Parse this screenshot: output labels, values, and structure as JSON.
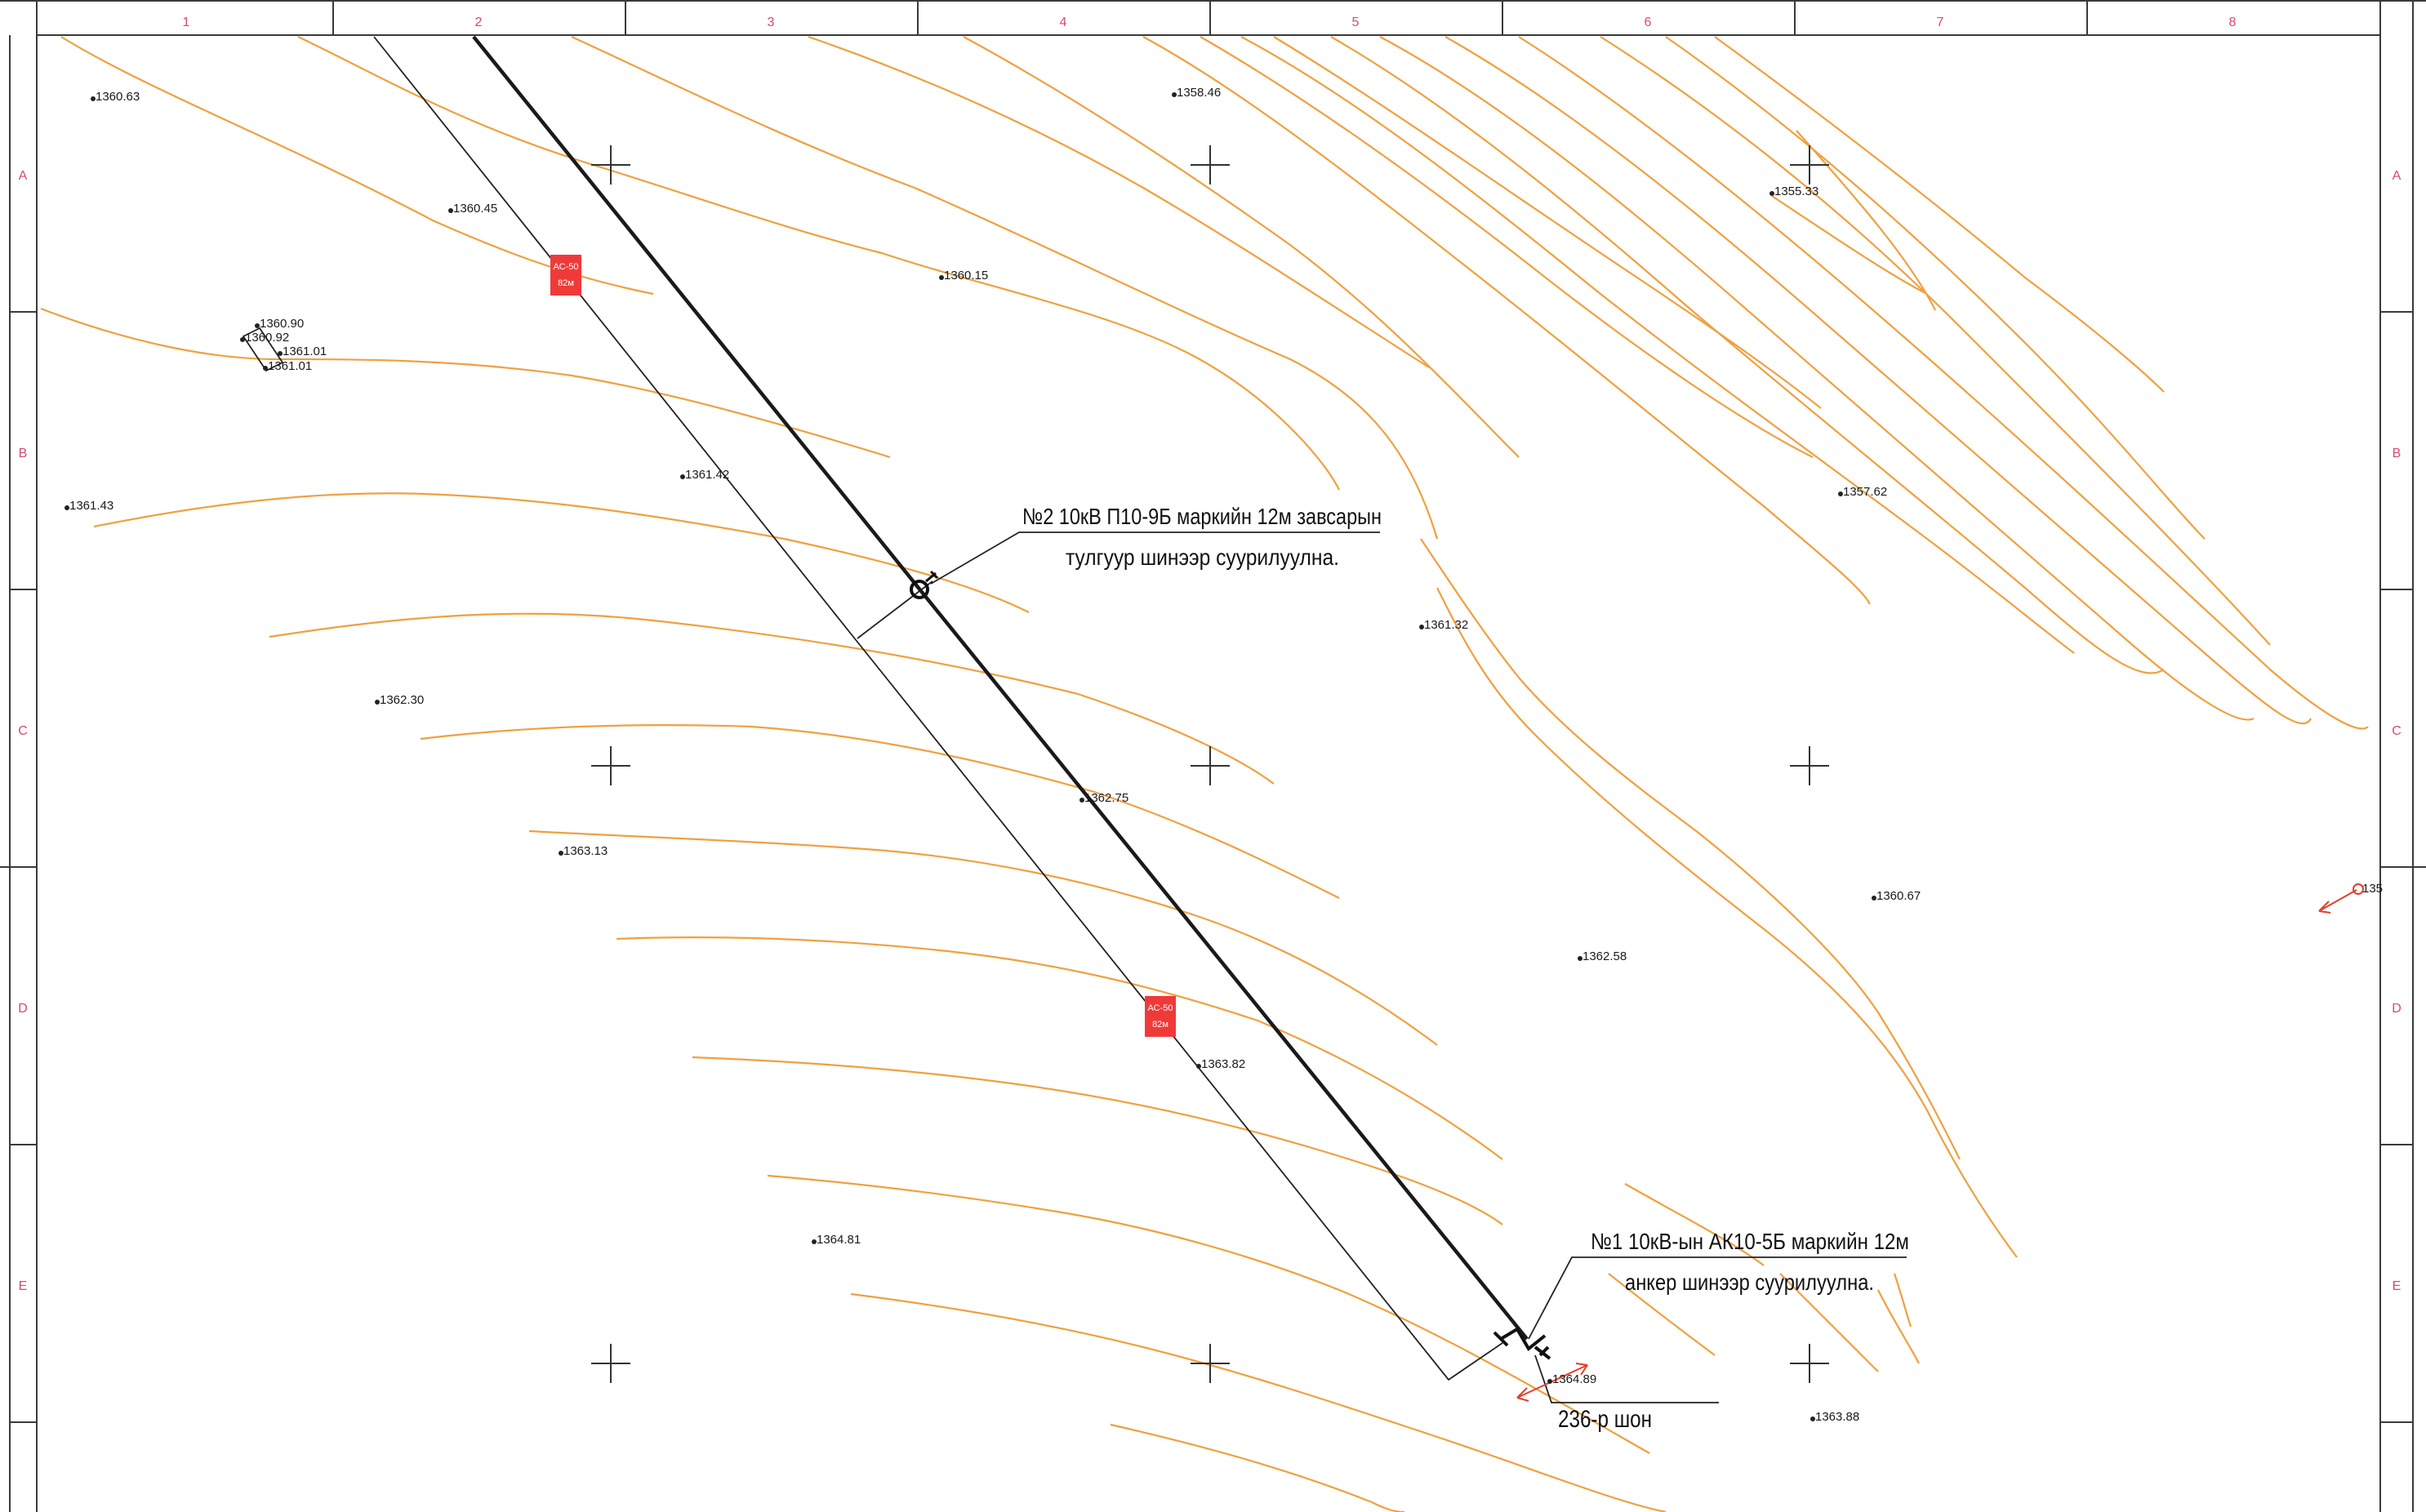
{
  "column_labels": [
    "1",
    "2",
    "3",
    "4",
    "5",
    "6",
    "7",
    "8"
  ],
  "row_labels": [
    "A",
    "B",
    "C",
    "D",
    "E"
  ],
  "elevations": [
    {
      "label": "1360.63"
    },
    {
      "label": "1358.46"
    },
    {
      "label": "1355.33"
    },
    {
      "label": "1360.45"
    },
    {
      "label": "1360.15"
    },
    {
      "label": "1360.90"
    },
    {
      "label": "1360.92"
    },
    {
      "label": "1361.01"
    },
    {
      "label": "1361.01"
    },
    {
      "label": "1361.43"
    },
    {
      "label": "1361.42"
    },
    {
      "label": "1357.62"
    },
    {
      "label": "1361.32"
    },
    {
      "label": "1362.30"
    },
    {
      "label": "1362.75"
    },
    {
      "label": "1363.13"
    },
    {
      "label": "1360.67"
    },
    {
      "label": "1362.58"
    },
    {
      "label": "1363.82"
    },
    {
      "label": "1364.81"
    },
    {
      "label": "1364.89"
    },
    {
      "label": "1363.88"
    },
    {
      "label": "135"
    }
  ],
  "wire_tags": [
    {
      "line1": "АС-50",
      "line2": "82м"
    },
    {
      "line1": "АС-50",
      "line2": "82м"
    }
  ],
  "callouts": {
    "pole2_line1": "№2 10кВ П10-9Б маркийн 12м завсарын",
    "pole2_line2": "тулгуур шинээр суурилуулна.",
    "pole1_line1": "№1  10кВ-ын АК10-5Б маркийн 12м",
    "pole1_line2": "анкер шинээр суурилуулна.",
    "post_label": "236-р шон"
  },
  "colors": {
    "contour": "#f0a040",
    "grid_label": "#d84a6a",
    "wire_tag": "#f03a3a",
    "accent_arrow": "#e0402a"
  }
}
